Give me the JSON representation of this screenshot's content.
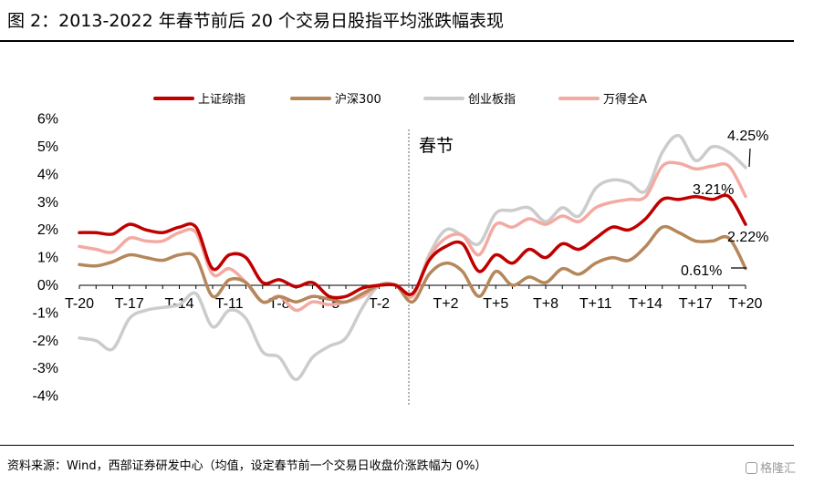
{
  "header": {
    "title": "图 2：2013-2022 年春节前后 20 个交易日股指平均涨跌幅表现"
  },
  "footer": {
    "source": "资料来源：Wind，西部证券研发中心（均值，设定春节前一个交易日收盘价涨跌幅为 0%）",
    "watermark": "格隆汇"
  },
  "chart_data": {
    "type": "line",
    "title": "",
    "xlabel": "",
    "ylabel": "",
    "x": [
      "T-20",
      "T-19",
      "T-18",
      "T-17",
      "T-16",
      "T-15",
      "T-14",
      "T-13",
      "T-12",
      "T-11",
      "T-10",
      "T-9",
      "T-8",
      "T-7",
      "T-6",
      "T-5",
      "T-4",
      "T-3",
      "T-2",
      "T-1",
      "T",
      "T+1",
      "T+2",
      "T+3",
      "T+4",
      "T+5",
      "T+6",
      "T+7",
      "T+8",
      "T+9",
      "T+10",
      "T+11",
      "T+12",
      "T+13",
      "T+14",
      "T+15",
      "T+16",
      "T+17",
      "T+18",
      "T+19",
      "T+20"
    ],
    "tick_labels": [
      "T-20",
      "T-17",
      "T-14",
      "T-11",
      "T-8",
      "T-5",
      "T-2",
      "T+2",
      "T+5",
      "T+8",
      "T+11",
      "T+14",
      "T+17",
      "T+20"
    ],
    "yticks": [
      "6%",
      "5%",
      "4%",
      "3%",
      "2%",
      "1%",
      "0%",
      "-1%",
      "-2%",
      "-3%",
      "-4%"
    ],
    "ylim": [
      -4,
      6
    ],
    "unit": "%",
    "grid": false,
    "legend_position": "top",
    "event_marker": {
      "x": "T",
      "label": "春节",
      "style": "dotted"
    },
    "series": [
      {
        "name": "上证综指",
        "color": "#c00000",
        "values": [
          1.9,
          1.9,
          1.85,
          2.2,
          2.0,
          1.9,
          2.1,
          2.1,
          0.6,
          1.1,
          1.0,
          0.1,
          0.2,
          -0.05,
          0.1,
          -0.4,
          -0.4,
          -0.1,
          0.0,
          0.0,
          -0.3,
          0.9,
          1.4,
          1.5,
          0.5,
          1.1,
          0.8,
          1.3,
          1.0,
          1.5,
          1.3,
          1.7,
          2.1,
          2.0,
          2.4,
          3.1,
          3.1,
          3.2,
          3.1,
          3.2,
          2.2
        ]
      },
      {
        "name": "沪深300",
        "color": "#b5875a",
        "values": [
          0.75,
          0.7,
          0.85,
          1.1,
          1.0,
          0.9,
          1.1,
          1.0,
          -0.4,
          0.2,
          0.1,
          -0.6,
          -0.4,
          -0.6,
          -0.4,
          -0.5,
          -0.6,
          -0.3,
          0.0,
          0.0,
          -0.6,
          0.4,
          0.8,
          0.5,
          -0.4,
          0.5,
          0.0,
          0.3,
          0.1,
          0.6,
          0.4,
          0.8,
          1.0,
          0.9,
          1.4,
          2.1,
          1.9,
          1.6,
          1.6,
          1.7,
          0.61
        ]
      },
      {
        "name": "创业板指",
        "color": "#cccccc",
        "values": [
          -1.9,
          -2.0,
          -2.3,
          -1.2,
          -0.9,
          -0.8,
          -0.7,
          -0.3,
          -1.5,
          -0.9,
          -1.2,
          -2.4,
          -2.6,
          -3.4,
          -2.6,
          -2.2,
          -1.9,
          -0.8,
          0.0,
          0.0,
          -0.4,
          1.1,
          2.0,
          1.8,
          1.5,
          2.6,
          2.7,
          2.8,
          2.3,
          2.8,
          2.5,
          3.5,
          3.8,
          3.7,
          3.4,
          4.8,
          5.4,
          4.5,
          5.0,
          4.8,
          4.25
        ]
      },
      {
        "name": "万得全A",
        "color": "#f2aaa3",
        "values": [
          1.4,
          1.3,
          1.2,
          1.7,
          1.6,
          1.6,
          1.9,
          1.9,
          0.4,
          0.6,
          0.1,
          -0.6,
          -0.4,
          -0.9,
          -0.6,
          -0.7,
          -0.6,
          -0.4,
          0.0,
          0.0,
          -0.4,
          1.0,
          1.7,
          1.8,
          1.1,
          2.2,
          2.1,
          2.4,
          2.2,
          2.5,
          2.3,
          2.8,
          3.0,
          3.1,
          3.2,
          4.3,
          4.4,
          4.2,
          4.3,
          4.3,
          3.21
        ]
      }
    ],
    "annotations": [
      "4.25%",
      "3.21%",
      "2.22%",
      "0.61%"
    ]
  }
}
